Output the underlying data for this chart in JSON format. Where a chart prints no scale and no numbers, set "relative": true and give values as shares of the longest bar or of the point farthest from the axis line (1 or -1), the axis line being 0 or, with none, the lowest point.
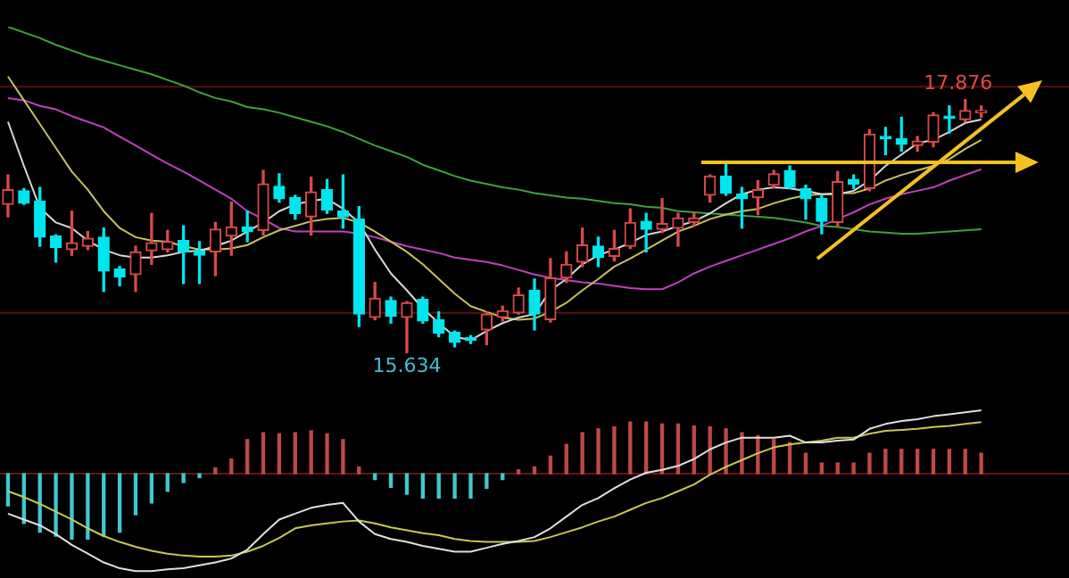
{
  "chart_data": [
    {
      "type": "candlestick",
      "categories": [
        null,
        null,
        null,
        null,
        null,
        null,
        null,
        null,
        null,
        null,
        null,
        null,
        null,
        null,
        null,
        null,
        null,
        null,
        null,
        null,
        null,
        null,
        null,
        null,
        null,
        null,
        null,
        null,
        null,
        null,
        null,
        null,
        null,
        null,
        null,
        null,
        null,
        null,
        null,
        null,
        null,
        null,
        null,
        null,
        null,
        null,
        null,
        null,
        null,
        null,
        null,
        null,
        null,
        null,
        null,
        null,
        null,
        null,
        null,
        null,
        null,
        null,
        null,
        null,
        null,
        null,
        null
      ],
      "ohlc": [
        [
          16.95,
          17.21,
          16.84,
          17.08
        ],
        [
          17.07,
          17.09,
          16.95,
          16.96
        ],
        [
          16.98,
          17.1,
          16.58,
          16.66
        ],
        [
          16.67,
          16.68,
          16.44,
          16.57
        ],
        [
          16.55,
          16.89,
          16.5,
          16.61
        ],
        [
          16.58,
          16.71,
          16.55,
          16.65
        ],
        [
          16.66,
          16.74,
          16.18,
          16.36
        ],
        [
          16.38,
          16.4,
          16.23,
          16.31
        ],
        [
          16.33,
          16.58,
          16.18,
          16.53
        ],
        [
          16.54,
          16.87,
          16.42,
          16.61
        ],
        [
          16.55,
          16.72,
          16.53,
          16.62
        ],
        [
          16.63,
          16.76,
          16.25,
          16.53
        ],
        [
          16.54,
          16.62,
          16.25,
          16.5
        ],
        [
          16.53,
          16.79,
          16.32,
          16.73
        ],
        [
          16.67,
          16.97,
          16.5,
          16.75
        ],
        [
          16.75,
          16.89,
          16.62,
          16.71
        ],
        [
          16.72,
          17.25,
          16.68,
          17.13
        ],
        [
          17.11,
          17.22,
          16.97,
          17.0
        ],
        [
          17.01,
          17.03,
          16.82,
          16.87
        ],
        [
          16.84,
          17.19,
          16.68,
          17.06
        ],
        [
          17.08,
          17.17,
          16.87,
          16.9
        ],
        [
          16.89,
          17.21,
          16.74,
          16.84
        ],
        [
          16.82,
          16.93,
          15.87,
          15.98
        ],
        [
          15.95,
          16.26,
          15.93,
          16.12
        ],
        [
          16.1,
          16.13,
          15.9,
          15.96
        ],
        [
          15.95,
          16.09,
          15.634,
          16.08
        ],
        [
          16.11,
          16.13,
          15.9,
          15.92
        ],
        [
          15.93,
          16.0,
          15.78,
          15.81
        ],
        [
          15.82,
          15.83,
          15.69,
          15.73
        ],
        [
          15.77,
          15.79,
          15.72,
          15.75
        ],
        [
          15.84,
          16.0,
          15.71,
          15.98
        ],
        [
          15.95,
          16.05,
          15.92,
          16.01
        ],
        [
          15.99,
          16.21,
          15.98,
          16.15
        ],
        [
          16.19,
          16.29,
          15.84,
          15.98
        ],
        [
          15.93,
          16.47,
          15.91,
          16.3
        ],
        [
          16.3,
          16.53,
          16.26,
          16.42
        ],
        [
          16.44,
          16.74,
          16.4,
          16.59
        ],
        [
          16.58,
          16.66,
          16.4,
          16.48
        ],
        [
          16.49,
          16.72,
          16.45,
          16.56
        ],
        [
          16.58,
          16.91,
          16.56,
          16.79
        ],
        [
          16.8,
          16.87,
          16.53,
          16.73
        ],
        [
          16.73,
          17.0,
          16.7,
          16.78
        ],
        [
          16.74,
          16.87,
          16.58,
          16.83
        ],
        [
          16.79,
          16.87,
          16.76,
          16.83
        ],
        [
          17.03,
          17.21,
          16.97,
          17.2
        ],
        [
          17.2,
          17.3,
          17.03,
          17.05
        ],
        [
          17.04,
          17.1,
          16.74,
          17.0
        ],
        [
          17.01,
          17.16,
          16.86,
          17.08
        ],
        [
          17.12,
          17.25,
          17.1,
          17.22
        ],
        [
          17.25,
          17.29,
          17.09,
          17.1
        ],
        [
          17.09,
          17.12,
          16.82,
          17.0
        ],
        [
          17.0,
          17.03,
          16.69,
          16.8
        ],
        [
          16.79,
          17.24,
          16.76,
          17.15
        ],
        [
          17.17,
          17.21,
          17.09,
          17.13
        ],
        [
          17.09,
          17.61,
          17.07,
          17.57
        ],
        [
          17.55,
          17.63,
          17.39,
          17.53
        ],
        [
          17.53,
          17.72,
          17.42,
          17.48
        ],
        [
          17.47,
          17.55,
          17.42,
          17.51
        ],
        [
          17.5,
          17.76,
          17.46,
          17.74
        ],
        [
          17.73,
          17.82,
          17.58,
          17.71
        ],
        [
          17.7,
          17.876,
          17.68,
          17.78
        ],
        [
          17.76,
          17.82,
          17.72,
          17.78
        ],
        null,
        null,
        null,
        null,
        null
      ],
      "colors": [
        "#d84a4a",
        "#00e5ee",
        "#00e5ee",
        "#00e5ee",
        "#d84a4a",
        "#d84a4a",
        "#00e5ee",
        "#00e5ee",
        "#d84a4a",
        "#d84a4a",
        "#d84a4a",
        "#00e5ee",
        "#00e5ee",
        "#d84a4a",
        "#d84a4a",
        "#00e5ee",
        "#d84a4a",
        "#00e5ee",
        "#00e5ee",
        "#d84a4a",
        "#00e5ee",
        "#00e5ee",
        "#00e5ee",
        "#d84a4a",
        "#00e5ee",
        "#d84a4a",
        "#00e5ee",
        "#00e5ee",
        "#00e5ee",
        "#00e5ee",
        "#d84a4a",
        "#d84a4a",
        "#d84a4a",
        "#00e5ee",
        "#d84a4a",
        "#d84a4a",
        "#d84a4a",
        "#00e5ee",
        "#d84a4a",
        "#d84a4a",
        "#00e5ee",
        "#d84a4a",
        "#d84a4a",
        "#d84a4a",
        "#d84a4a",
        "#00e5ee",
        "#00e5ee",
        "#d84a4a",
        "#d84a4a",
        "#00e5ee",
        "#00e5ee",
        "#00e5ee",
        "#d84a4a",
        "#00e5ee",
        "#d84a4a",
        "#00e5ee",
        "#00e5ee",
        "#d84a4a",
        "#d84a4a",
        "#00e5ee",
        "#d84a4a",
        "#d84a4a",
        null,
        null,
        null,
        null,
        null
      ],
      "yticks": [
        {
          "value": 17.99,
          "label": null
        },
        {
          "value": 15.99,
          "label": null
        }
      ],
      "grid": "y",
      "marker": "none",
      "series": [
        {
          "type": "line",
          "color": "#d8d8d8",
          "values": [
            17.68,
            17.29,
            16.92,
            16.79,
            16.74,
            16.63,
            16.55,
            16.5,
            16.48,
            16.48,
            16.5,
            16.53,
            16.54,
            16.58,
            16.63,
            16.71,
            16.79,
            16.89,
            16.95,
            16.98,
            17.0,
            16.91,
            16.79,
            16.55,
            16.34,
            16.19,
            16.03,
            15.9,
            15.78,
            15.75,
            15.83,
            15.9,
            15.95,
            15.98,
            16.19,
            16.29,
            16.42,
            16.5,
            16.55,
            16.61,
            16.68,
            16.71,
            16.76,
            16.8,
            16.87,
            16.96,
            17.04,
            17.08,
            17.1,
            17.09,
            17.07,
            17.04,
            17.04,
            17.07,
            17.16,
            17.29,
            17.39,
            17.49,
            17.52,
            17.59,
            17.67,
            17.7,
            null,
            null,
            null,
            null,
            null
          ]
        },
        {
          "type": "line",
          "color": "#c8c060",
          "values": [
            18.08,
            17.87,
            17.66,
            17.45,
            17.24,
            17.08,
            16.89,
            16.74,
            16.66,
            16.63,
            16.62,
            16.58,
            16.55,
            16.55,
            16.56,
            16.59,
            16.66,
            16.72,
            16.76,
            16.8,
            16.82,
            16.83,
            16.79,
            16.71,
            16.62,
            16.53,
            16.42,
            16.29,
            16.16,
            16.05,
            16.0,
            15.95,
            15.93,
            15.94,
            16.0,
            16.08,
            16.19,
            16.29,
            16.4,
            16.47,
            16.55,
            16.63,
            16.71,
            16.76,
            16.82,
            16.86,
            16.89,
            16.91,
            16.96,
            17.0,
            17.03,
            17.04,
            17.05,
            17.05,
            17.09,
            17.16,
            17.21,
            17.25,
            17.29,
            17.35,
            17.44,
            17.52,
            null,
            null,
            null,
            null,
            null
          ]
        },
        {
          "type": "line",
          "color": "#c040c0",
          "values": [
            17.89,
            17.87,
            17.82,
            17.79,
            17.73,
            17.68,
            17.63,
            17.55,
            17.47,
            17.39,
            17.31,
            17.24,
            17.16,
            17.08,
            17.0,
            16.89,
            16.82,
            16.74,
            16.71,
            16.71,
            16.71,
            16.71,
            16.69,
            16.66,
            16.62,
            16.58,
            16.55,
            16.52,
            16.48,
            16.46,
            16.44,
            16.41,
            16.37,
            16.33,
            16.3,
            16.28,
            16.26,
            16.25,
            16.23,
            16.21,
            16.2,
            16.2,
            16.26,
            16.34,
            16.4,
            16.45,
            16.5,
            16.55,
            16.6,
            16.65,
            16.71,
            16.76,
            16.82,
            16.88,
            16.95,
            17.0,
            17.04,
            17.07,
            17.1,
            17.16,
            17.21,
            17.26,
            null,
            null,
            null,
            null,
            null
          ]
        },
        {
          "type": "line",
          "color": "#40a040",
          "values": [
            18.52,
            18.47,
            18.42,
            18.36,
            18.31,
            18.26,
            18.22,
            18.18,
            18.14,
            18.1,
            18.05,
            18.0,
            17.94,
            17.89,
            17.86,
            17.81,
            17.79,
            17.76,
            17.72,
            17.68,
            17.64,
            17.59,
            17.53,
            17.47,
            17.42,
            17.37,
            17.3,
            17.25,
            17.2,
            17.16,
            17.13,
            17.1,
            17.08,
            17.05,
            17.03,
            17.01,
            17.0,
            16.98,
            16.96,
            16.95,
            16.93,
            16.92,
            16.89,
            16.88,
            16.87,
            16.86,
            16.85,
            16.84,
            16.83,
            16.81,
            16.79,
            16.76,
            16.75,
            16.73,
            16.71,
            16.7,
            16.69,
            16.69,
            16.7,
            16.71,
            16.72,
            16.73,
            null,
            null,
            null,
            null,
            null
          ]
        }
      ],
      "annotations": [
        {
          "text": "17.876",
          "y": 17.876
        },
        {
          "text": "15.634",
          "y": 15.634
        }
      ]
    },
    {
      "type": "bar",
      "relative": true,
      "marker": "none",
      "ref_lines": [
        {
          "axis": "y",
          "value": 0,
          "color": "#6a1414"
        }
      ],
      "categories": [
        null,
        null,
        null,
        null,
        null,
        null,
        null,
        null,
        null,
        null,
        null,
        null,
        null,
        null,
        null,
        null,
        null,
        null,
        null,
        null,
        null,
        null,
        null,
        null,
        null,
        null,
        null,
        null,
        null,
        null,
        null,
        null,
        null,
        null,
        null,
        null,
        null,
        null,
        null,
        null,
        null,
        null,
        null,
        null,
        null,
        null,
        null,
        null,
        null,
        null,
        null,
        null,
        null,
        null,
        null,
        null,
        null,
        null,
        null,
        null,
        null,
        null,
        null,
        null,
        null,
        null,
        null
      ],
      "series": [
        {
          "type": "bar",
          "color": "#c04848",
          "values": [
            null,
            null,
            null,
            null,
            null,
            null,
            null,
            null,
            null,
            null,
            null,
            null,
            null,
            0.06,
            0.15,
            0.35,
            0.42,
            0.41,
            0.42,
            0.44,
            0.41,
            0.35,
            0.07,
            null,
            null,
            null,
            null,
            null,
            null,
            null,
            null,
            null,
            0.04,
            0.07,
            0.18,
            0.3,
            0.42,
            0.46,
            0.48,
            0.53,
            0.53,
            0.51,
            0.51,
            0.49,
            0.48,
            0.46,
            0.42,
            0.39,
            0.35,
            0.32,
            0.21,
            0.11,
            0.11,
            0.11,
            0.21,
            0.25,
            0.25,
            0.25,
            0.25,
            0.25,
            0.25,
            0.21,
            null,
            null,
            null,
            null,
            null
          ]
        },
        {
          "type": "bar",
          "color": "#40c8d0",
          "values": [
            -0.33,
            -0.51,
            -0.6,
            -0.64,
            -0.67,
            -0.67,
            -0.64,
            -0.6,
            -0.42,
            -0.3,
            -0.18,
            -0.09,
            -0.04,
            null,
            null,
            null,
            null,
            null,
            null,
            null,
            null,
            null,
            null,
            -0.06,
            -0.14,
            -0.21,
            -0.25,
            -0.25,
            -0.25,
            -0.25,
            -0.15,
            -0.06,
            null,
            null,
            null,
            null,
            null,
            null,
            null,
            null,
            null,
            null,
            null,
            null,
            null,
            null,
            null,
            null,
            null,
            null,
            null,
            null,
            null,
            null,
            null,
            null,
            null,
            null,
            null,
            null,
            null,
            null,
            null,
            null,
            null,
            null,
            null
          ]
        },
        {
          "type": "line",
          "color": "#e0e0e0",
          "values": [
            -0.41,
            -0.47,
            -0.53,
            -0.62,
            -0.73,
            -0.82,
            -0.91,
            -0.97,
            -1,
            -1,
            -0.98,
            -0.97,
            -0.94,
            -0.91,
            -0.87,
            -0.78,
            -0.62,
            -0.47,
            -0.41,
            -0.35,
            -0.32,
            -0.3,
            -0.49,
            -0.62,
            -0.67,
            -0.7,
            -0.74,
            -0.77,
            -0.8,
            -0.8,
            -0.76,
            -0.72,
            -0.69,
            -0.65,
            -0.56,
            -0.44,
            -0.32,
            -0.25,
            -0.15,
            -0.06,
            0.01,
            0.04,
            0.08,
            0.15,
            0.25,
            0.32,
            0.37,
            0.37,
            0.37,
            0.39,
            0.32,
            0.32,
            0.34,
            0.35,
            0.46,
            0.51,
            0.54,
            0.56,
            0.59,
            0.61,
            0.63,
            0.65,
            null,
            null,
            null,
            null,
            null
          ]
        },
        {
          "type": "line",
          "color": "#c8c850",
          "values": [
            -0.18,
            -0.24,
            -0.31,
            -0.39,
            -0.47,
            -0.56,
            -0.64,
            -0.7,
            -0.75,
            -0.79,
            -0.82,
            -0.84,
            -0.85,
            -0.85,
            -0.84,
            -0.8,
            -0.74,
            -0.66,
            -0.56,
            -0.53,
            -0.51,
            -0.49,
            -0.48,
            -0.51,
            -0.55,
            -0.58,
            -0.61,
            -0.63,
            -0.67,
            -0.69,
            -0.7,
            -0.7,
            -0.7,
            -0.69,
            -0.65,
            -0.6,
            -0.55,
            -0.49,
            -0.44,
            -0.37,
            -0.3,
            -0.25,
            -0.18,
            -0.11,
            -0.01,
            0.07,
            0.14,
            0.21,
            0.27,
            0.3,
            0.32,
            0.34,
            0.37,
            0.37,
            0.41,
            0.44,
            0.45,
            0.46,
            0.48,
            0.49,
            0.51,
            0.53,
            null,
            null,
            null,
            null,
            null
          ]
        }
      ]
    }
  ]
}
